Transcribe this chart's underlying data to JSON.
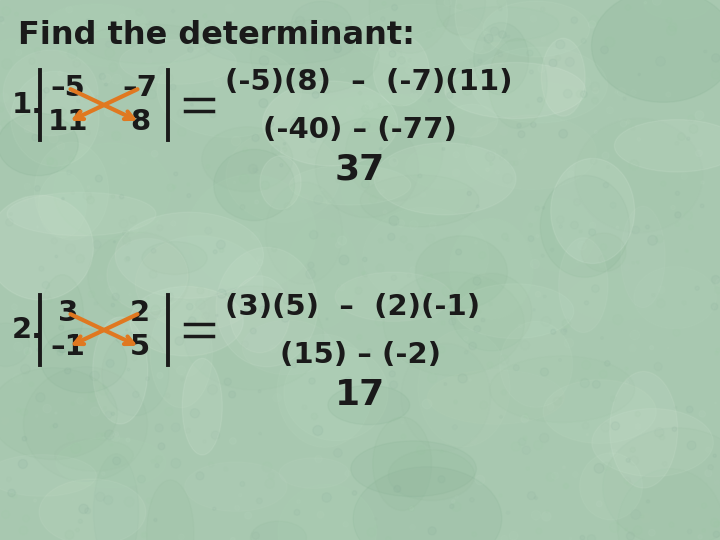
{
  "title": "Find the determinant:",
  "bg_color": "#a8c8b0",
  "text_color": "#1a1a1a",
  "orange_color": "#e07820",
  "title_fontsize": 23,
  "math_fontsize": 21,
  "result_fontsize": 26,
  "matrix1": {
    "tl": "–5",
    "tr": "–7",
    "bl": "11",
    "br": "8"
  },
  "matrix2": {
    "tl": "3",
    "tr": "2",
    "bl": "–1",
    "br": "5"
  },
  "line1_eq": "(-5)(8)  –  (-7)(11)",
  "line1_step": "(-40) – (-77)",
  "line1_result": "37",
  "line2_eq": "(3)(5)  –  (2)(-1)",
  "line2_step": "(15) – (-2)",
  "line2_result": "17",
  "label1": "1.",
  "label2": "2."
}
